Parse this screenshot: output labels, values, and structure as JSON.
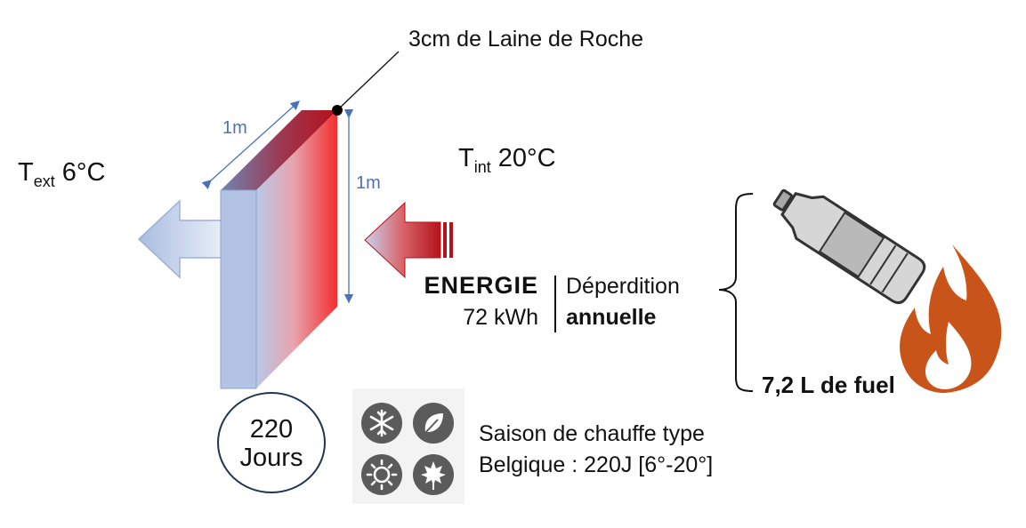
{
  "insulation_label": "3cm de Laine de Roche",
  "dimension_width": "1m",
  "dimension_height": "1m",
  "temp_ext": {
    "prefix": "T",
    "subscript": "ext",
    "value": "6°C"
  },
  "temp_int": {
    "prefix": "T",
    "subscript": "int",
    "value": "20°C"
  },
  "energy": {
    "title": "ENERGIE",
    "value": "72 kWh"
  },
  "loss": {
    "line1": "Déperdition",
    "line2": "annuelle"
  },
  "fuel_label": "7,2 L de fuel",
  "days": {
    "number": "220",
    "unit": "Jours"
  },
  "season": {
    "line1": "Saison de chauffe type",
    "line2": "Belgique : 220J  [6°-20°]"
  },
  "icons": [
    "snowflake-icon",
    "leaf-icon",
    "sun-icon",
    "maple-leaf-icon",
    "water-bottle-icon",
    "flame-icon"
  ],
  "colors": {
    "cold": "#a9bde0",
    "hot": "#f33a3a",
    "dark_red": "#b5121b",
    "flame": "#c8541a",
    "dimension": "#4a72b8"
  }
}
